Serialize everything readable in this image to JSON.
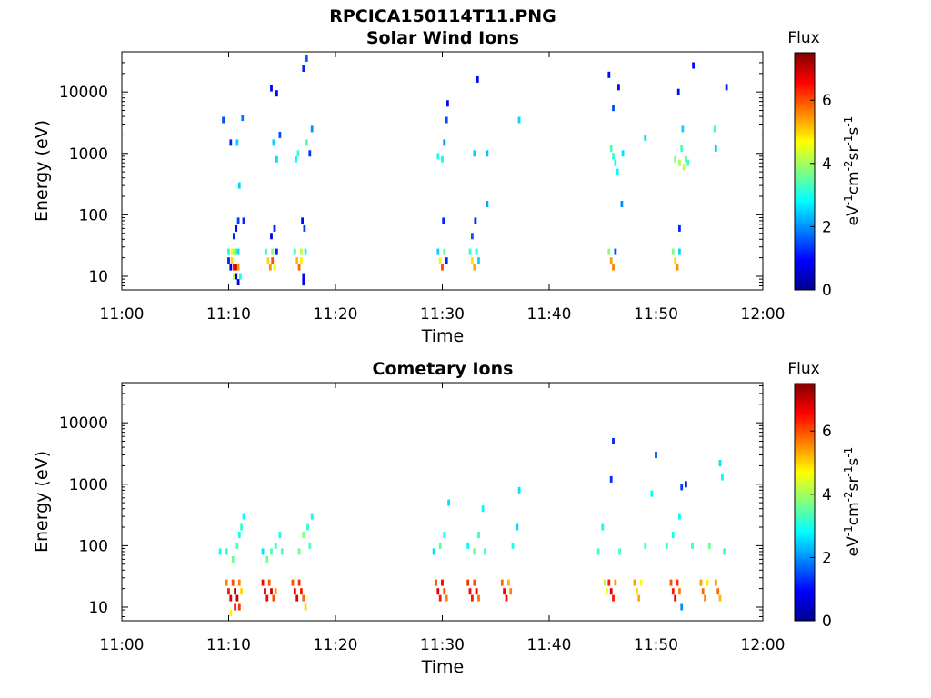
{
  "figure_title": "RPCICA150114T11.PNG",
  "colorbar": {
    "label": "Flux",
    "unit_parts": [
      {
        "text": "eV",
        "sup": false
      },
      {
        "text": "-1",
        "sup": true
      },
      {
        "text": "cm",
        "sup": false
      },
      {
        "text": "-2",
        "sup": true
      },
      {
        "text": "sr",
        "sup": false
      },
      {
        "text": "-1",
        "sup": true
      },
      {
        "text": "s",
        "sup": false
      },
      {
        "text": "-1",
        "sup": true
      }
    ],
    "range": [
      0,
      7.5
    ],
    "ticks": [
      0,
      2,
      4,
      6
    ],
    "colormap": "jet"
  },
  "chart_data": [
    {
      "type": "heatmap",
      "title": "Solar Wind Ions",
      "xlabel": "Time",
      "ylabel": "Energy (eV)",
      "x_ticks": [
        "11:00",
        "11:10",
        "11:20",
        "11:30",
        "11:40",
        "11:50",
        "12:00"
      ],
      "x_range_min": [
        0,
        60
      ],
      "y_ticks": [
        10,
        100,
        1000,
        10000
      ],
      "y_tick_labels": [
        "10",
        "100",
        "1000",
        "10000"
      ],
      "ylim": [
        6,
        45000
      ],
      "y_scale": "log",
      "grid": false,
      "cells": [
        [
          10.0,
          18,
          1.2
        ],
        [
          10.0,
          25,
          3.0
        ],
        [
          10.2,
          14,
          0.8
        ],
        [
          10.3,
          18,
          5.0
        ],
        [
          10.3,
          25,
          4.6
        ],
        [
          10.5,
          14,
          6.5
        ],
        [
          10.5,
          10,
          4.0
        ],
        [
          10.5,
          25,
          4.0
        ],
        [
          10.7,
          14,
          7.0
        ],
        [
          10.7,
          10,
          0.6
        ],
        [
          10.7,
          25,
          3.3
        ],
        [
          10.9,
          14,
          5.5
        ],
        [
          10.9,
          8,
          0.8
        ],
        [
          10.9,
          25,
          2.6
        ],
        [
          11.1,
          10,
          3.0
        ],
        [
          10.7,
          60,
          1.0
        ],
        [
          10.5,
          45,
          1.2
        ],
        [
          10.9,
          80,
          1.4
        ],
        [
          9.5,
          3500,
          1.5
        ],
        [
          10.2,
          1500,
          1.2
        ],
        [
          10.8,
          1500,
          2.5
        ],
        [
          11.3,
          3800,
          1.8
        ],
        [
          11.0,
          300,
          2.5
        ],
        [
          11.4,
          80,
          1.2
        ],
        [
          13.5,
          25,
          3.5
        ],
        [
          13.7,
          18,
          5.0
        ],
        [
          13.9,
          14,
          5.5
        ],
        [
          14.1,
          18,
          6.0
        ],
        [
          14.1,
          25,
          3.8
        ],
        [
          14.3,
          14,
          4.5
        ],
        [
          14.5,
          25,
          1.2
        ],
        [
          14.3,
          60,
          1.2
        ],
        [
          14.0,
          45,
          0.8
        ],
        [
          14.5,
          800,
          2.6
        ],
        [
          14.0,
          11500,
          1.0
        ],
        [
          14.2,
          1500,
          2.5
        ],
        [
          14.8,
          2000,
          1.5
        ],
        [
          14.5,
          9500,
          1.0
        ],
        [
          16.2,
          25,
          3.3
        ],
        [
          16.4,
          18,
          5.2
        ],
        [
          16.6,
          14,
          5.8
        ],
        [
          16.8,
          18,
          4.8
        ],
        [
          16.8,
          25,
          4.2
        ],
        [
          17.0,
          10,
          1.0
        ],
        [
          17.0,
          8,
          0.8
        ],
        [
          17.2,
          25,
          3.0
        ],
        [
          17.1,
          60,
          1.4
        ],
        [
          16.9,
          80,
          1.0
        ],
        [
          16.5,
          1000,
          3.2
        ],
        [
          16.3,
          800,
          2.8
        ],
        [
          17.3,
          35000,
          1.6
        ],
        [
          17.0,
          24000,
          1.2
        ],
        [
          17.6,
          1000,
          1.3
        ],
        [
          17.8,
          2500,
          2.0
        ],
        [
          17.3,
          1500,
          3.4
        ],
        [
          29.6,
          25,
          2.5
        ],
        [
          29.8,
          18,
          4.8
        ],
        [
          30.0,
          14,
          6.0
        ],
        [
          30.2,
          25,
          3.6
        ],
        [
          30.4,
          18,
          1.2
        ],
        [
          30.1,
          80,
          1.2
        ],
        [
          29.6,
          900,
          3.0
        ],
        [
          30.0,
          800,
          2.9
        ],
        [
          30.2,
          1500,
          2.0
        ],
        [
          30.5,
          6500,
          1.0
        ],
        [
          30.4,
          3500,
          1.5
        ],
        [
          32.6,
          25,
          3.2
        ],
        [
          32.8,
          18,
          4.9
        ],
        [
          33.0,
          14,
          5.3
        ],
        [
          33.2,
          25,
          3.0
        ],
        [
          33.4,
          18,
          2.5
        ],
        [
          33.1,
          80,
          1.2
        ],
        [
          32.8,
          45,
          1.6
        ],
        [
          33.0,
          1000,
          2.5
        ],
        [
          33.3,
          16000,
          1.0
        ],
        [
          34.2,
          1000,
          2.4
        ],
        [
          34.2,
          150,
          2.2
        ],
        [
          37.2,
          3500,
          2.5
        ],
        [
          45.6,
          25,
          3.8
        ],
        [
          45.8,
          18,
          5.4
        ],
        [
          46.0,
          14,
          5.6
        ],
        [
          46.2,
          25,
          1.5
        ],
        [
          46.0,
          900,
          3.2
        ],
        [
          45.8,
          1200,
          3.4
        ],
        [
          46.2,
          700,
          3.0
        ],
        [
          46.4,
          500,
          2.8
        ],
        [
          46.0,
          5500,
          1.5
        ],
        [
          45.6,
          19000,
          1.0
        ],
        [
          46.5,
          12000,
          1.0
        ],
        [
          46.9,
          1000,
          2.6
        ],
        [
          46.8,
          150,
          2.0
        ],
        [
          49.0,
          1800,
          2.6
        ],
        [
          51.6,
          25,
          3.7
        ],
        [
          51.8,
          18,
          5.0
        ],
        [
          52.0,
          14,
          5.5
        ],
        [
          52.2,
          25,
          2.5
        ],
        [
          52.2,
          60,
          1.2
        ],
        [
          51.8,
          800,
          3.8
        ],
        [
          52.2,
          700,
          4.0
        ],
        [
          52.4,
          1200,
          3.3
        ],
        [
          52.6,
          600,
          4.2
        ],
        [
          52.8,
          800,
          3.5
        ],
        [
          53.0,
          700,
          3.3
        ],
        [
          52.5,
          2500,
          2.5
        ],
        [
          53.5,
          27000,
          1.0
        ],
        [
          52.1,
          10000,
          1.0
        ],
        [
          55.5,
          2500,
          3.3
        ],
        [
          55.6,
          1200,
          2.5
        ],
        [
          56.6,
          12000,
          1.2
        ]
      ]
    },
    {
      "type": "heatmap",
      "title": "Cometary Ions",
      "xlabel": "Time",
      "ylabel": "Energy (eV)",
      "x_ticks": [
        "11:00",
        "11:10",
        "11:20",
        "11:30",
        "11:40",
        "11:50",
        "12:00"
      ],
      "x_range_min": [
        0,
        60
      ],
      "y_ticks": [
        10,
        100,
        1000,
        10000
      ],
      "y_tick_labels": [
        "10",
        "100",
        "1000",
        "10000"
      ],
      "ylim": [
        6,
        45000
      ],
      "y_scale": "log",
      "grid": false,
      "cells": [
        [
          9.8,
          25,
          5.6
        ],
        [
          10.0,
          18,
          6.4
        ],
        [
          10.2,
          14,
          6.8
        ],
        [
          10.4,
          25,
          6.0
        ],
        [
          10.6,
          18,
          7.2
        ],
        [
          10.8,
          14,
          7.0
        ],
        [
          11.0,
          10,
          6.2
        ],
        [
          11.0,
          25,
          5.6
        ],
        [
          10.6,
          10,
          6.4
        ],
        [
          10.2,
          8,
          4.8
        ],
        [
          11.2,
          18,
          5.0
        ],
        [
          9.2,
          80,
          2.9
        ],
        [
          9.8,
          80,
          3.2
        ],
        [
          10.4,
          60,
          3.6
        ],
        [
          10.8,
          100,
          3.4
        ],
        [
          11.0,
          150,
          3.0
        ],
        [
          11.2,
          200,
          3.2
        ],
        [
          11.4,
          300,
          2.8
        ],
        [
          13.2,
          25,
          6.6
        ],
        [
          13.4,
          18,
          6.8
        ],
        [
          13.6,
          14,
          6.6
        ],
        [
          13.8,
          25,
          5.9
        ],
        [
          14.0,
          18,
          6.9
        ],
        [
          14.2,
          14,
          6.0
        ],
        [
          14.4,
          18,
          5.4
        ],
        [
          13.6,
          60,
          3.6
        ],
        [
          14.0,
          80,
          3.4
        ],
        [
          14.4,
          100,
          3.2
        ],
        [
          14.8,
          150,
          3.0
        ],
        [
          15.0,
          80,
          3.4
        ],
        [
          13.2,
          80,
          2.6
        ],
        [
          16.0,
          25,
          6.0
        ],
        [
          16.2,
          18,
          6.6
        ],
        [
          16.4,
          14,
          6.8
        ],
        [
          16.6,
          25,
          6.2
        ],
        [
          16.8,
          18,
          6.4
        ],
        [
          17.0,
          14,
          5.8
        ],
        [
          17.2,
          10,
          5.0
        ],
        [
          16.6,
          80,
          3.6
        ],
        [
          17.0,
          150,
          3.8
        ],
        [
          17.4,
          200,
          3.2
        ],
        [
          17.8,
          300,
          2.9
        ],
        [
          17.6,
          100,
          3.4
        ],
        [
          29.4,
          25,
          6.0
        ],
        [
          29.6,
          18,
          6.8
        ],
        [
          29.8,
          14,
          6.4
        ],
        [
          30.0,
          25,
          6.6
        ],
        [
          30.2,
          18,
          6.0
        ],
        [
          30.4,
          14,
          5.6
        ],
        [
          29.2,
          80,
          2.6
        ],
        [
          29.8,
          100,
          3.5
        ],
        [
          30.2,
          150,
          3.0
        ],
        [
          30.6,
          500,
          2.6
        ],
        [
          32.4,
          25,
          6.2
        ],
        [
          32.6,
          18,
          6.6
        ],
        [
          32.8,
          14,
          6.4
        ],
        [
          33.0,
          25,
          6.0
        ],
        [
          33.2,
          18,
          6.7
        ],
        [
          33.4,
          14,
          5.7
        ],
        [
          32.4,
          100,
          2.8
        ],
        [
          33.0,
          80,
          3.6
        ],
        [
          33.4,
          150,
          3.2
        ],
        [
          33.8,
          400,
          2.8
        ],
        [
          34.0,
          80,
          3.3
        ],
        [
          35.6,
          25,
          5.8
        ],
        [
          35.8,
          18,
          6.6
        ],
        [
          36.0,
          14,
          6.5
        ],
        [
          36.2,
          25,
          5.2
        ],
        [
          36.4,
          18,
          5.6
        ],
        [
          36.6,
          100,
          3.0
        ],
        [
          37.2,
          800,
          2.6
        ],
        [
          37.0,
          200,
          2.5
        ],
        [
          44.6,
          80,
          3.2
        ],
        [
          45.0,
          200,
          2.9
        ],
        [
          45.2,
          25,
          4.2
        ],
        [
          45.4,
          18,
          4.6
        ],
        [
          45.6,
          25,
          6.4
        ],
        [
          45.8,
          18,
          6.8
        ],
        [
          46.0,
          14,
          6.4
        ],
        [
          46.2,
          25,
          5.4
        ],
        [
          46.0,
          5000,
          1.2
        ],
        [
          45.8,
          1200,
          1.3
        ],
        [
          46.6,
          80,
          3.4
        ],
        [
          48.0,
          25,
          5.4
        ],
        [
          48.2,
          18,
          5.0
        ],
        [
          48.4,
          14,
          5.3
        ],
        [
          48.6,
          25,
          4.6
        ],
        [
          49.0,
          100,
          3.4
        ],
        [
          49.6,
          700,
          2.8
        ],
        [
          50.0,
          3000,
          1.5
        ],
        [
          51.4,
          25,
          6.0
        ],
        [
          51.6,
          18,
          6.4
        ],
        [
          51.8,
          14,
          6.8
        ],
        [
          52.0,
          25,
          6.2
        ],
        [
          52.2,
          18,
          5.6
        ],
        [
          52.4,
          10,
          2.0
        ],
        [
          51.0,
          100,
          3.2
        ],
        [
          51.6,
          150,
          3.0
        ],
        [
          52.2,
          300,
          2.8
        ],
        [
          52.4,
          900,
          1.4
        ],
        [
          52.8,
          1000,
          1.2
        ],
        [
          53.4,
          100,
          3.2
        ],
        [
          54.2,
          25,
          5.4
        ],
        [
          54.4,
          18,
          5.8
        ],
        [
          54.6,
          14,
          5.6
        ],
        [
          54.8,
          25,
          4.8
        ],
        [
          55.0,
          100,
          3.6
        ],
        [
          55.6,
          25,
          5.4
        ],
        [
          55.8,
          18,
          5.8
        ],
        [
          56.0,
          14,
          5.2
        ],
        [
          56.0,
          2200,
          2.6
        ],
        [
          56.2,
          1300,
          2.8
        ],
        [
          56.4,
          80,
          3.2
        ]
      ]
    }
  ]
}
